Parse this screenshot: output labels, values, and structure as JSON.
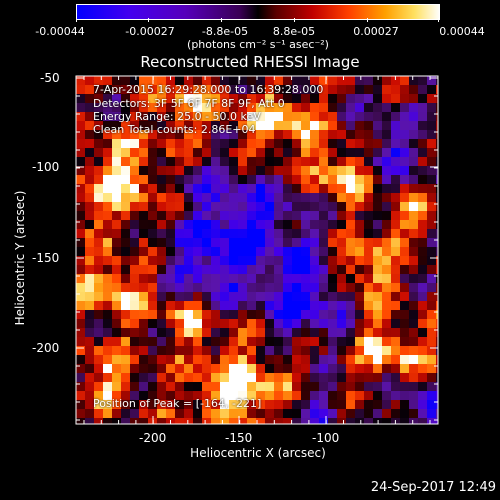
{
  "colorbar": {
    "tick_labels": [
      "-0.00044",
      "-0.00027",
      "-8.8e-05",
      "8.8e-05",
      "0.00027",
      "0.00044"
    ],
    "units": "(photons cm⁻² s⁻¹ asec⁻²)"
  },
  "image": {
    "title": "Reconstructed RHESSI Image",
    "annotations": [
      "7-Apr-2015 16:29:28.000 to 16:39:28.000",
      "Detectors: 3F 5F 6F 7F 8F 9F, Att 0",
      "Energy Range: 25.0 - 50.0 keV",
      "Clean     Total counts: 2.86E+04"
    ],
    "peak_label": "Position of Peak = [-164, -221]",
    "xlabel": "Heliocentric X (arcsec)",
    "ylabel": "Heliocentric Y (arcsec)",
    "x_ticks": [
      "-200",
      "-150",
      "-100"
    ],
    "y_ticks": [
      "-50",
      "-100",
      "-150",
      "-200"
    ]
  },
  "footer": {
    "date": "24-Sep-2017 12:49"
  },
  "colors": {
    "accent": "#ffffff",
    "background": "#000000"
  }
}
